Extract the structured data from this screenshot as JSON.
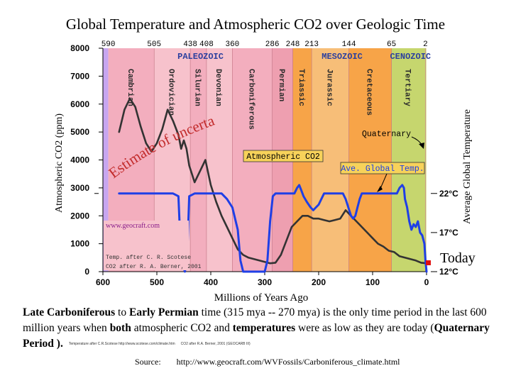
{
  "title": "Global Temperature and Atmospheric CO2 over Geologic Time",
  "chart_data": {
    "type": "line",
    "xlabel": "Millions of Years Ago",
    "ylabel_left": "Atmospheric CO2 (ppm)",
    "ylabel_right": "Average Global Temperature",
    "x_ticks": [
      600,
      500,
      400,
      300,
      200,
      100,
      0
    ],
    "y_ticks": [
      0,
      1000,
      2000,
      3000,
      4000,
      5000,
      6000,
      7000,
      8000
    ],
    "xlim": [
      600,
      0
    ],
    "ylim": [
      0,
      8000
    ],
    "temp_ticks": [
      {
        "label": "22°C",
        "ppm": 2800
      },
      {
        "label": "17°C",
        "ppm": 1400
      },
      {
        "label": "12°C",
        "ppm": 0
      }
    ],
    "top_boundaries": [
      "590",
      "505",
      "438",
      "408",
      "360",
      "286",
      "248",
      "213",
      "144",
      "65",
      "2"
    ],
    "eras": [
      {
        "label": "PALEOZOIC",
        "start": 590,
        "end": 248,
        "color": "#f4b6c0"
      },
      {
        "label": "MESOZOIC",
        "start": 248,
        "end": 65,
        "color": "#f6c985"
      },
      {
        "label": "CENOZOIC",
        "start": 65,
        "end": 0,
        "color": "#c9d97a"
      }
    ],
    "periods": [
      {
        "label": "Cambrian",
        "start": 590,
        "end": 505,
        "color": "#f3aebe"
      },
      {
        "label": "Ordovician",
        "start": 505,
        "end": 438,
        "color": "#f7c2cc"
      },
      {
        "label": "Silurian",
        "start": 438,
        "end": 408,
        "color": "#f3aebe"
      },
      {
        "label": "Devonian",
        "start": 408,
        "end": 360,
        "color": "#f7c2cc"
      },
      {
        "label": "Carboniferous",
        "start": 360,
        "end": 286,
        "color": "#f3aebe"
      },
      {
        "label": "Permian",
        "start": 286,
        "end": 248,
        "color": "#ee9fb0"
      },
      {
        "label": "Triassic",
        "start": 248,
        "end": 213,
        "color": "#f7a448"
      },
      {
        "label": "Jurassic",
        "start": 213,
        "end": 144,
        "color": "#f7be78"
      },
      {
        "label": "Cretaceous",
        "start": 144,
        "end": 65,
        "color": "#f7a448"
      },
      {
        "label": "Tertiary",
        "start": 65,
        "end": 2,
        "color": "#c6d66e"
      }
    ],
    "series": [
      {
        "name": "Atmospheric CO2",
        "color": "#333333",
        "points": [
          [
            570,
            5000
          ],
          [
            560,
            5800
          ],
          [
            550,
            6200
          ],
          [
            540,
            5900
          ],
          [
            530,
            5200
          ],
          [
            520,
            4600
          ],
          [
            510,
            4300
          ],
          [
            500,
            4600
          ],
          [
            490,
            5100
          ],
          [
            480,
            5800
          ],
          [
            470,
            5400
          ],
          [
            460,
            4900
          ],
          [
            455,
            4400
          ],
          [
            450,
            4700
          ],
          [
            445,
            4400
          ],
          [
            440,
            3800
          ],
          [
            430,
            3200
          ],
          [
            420,
            3600
          ],
          [
            410,
            4000
          ],
          [
            400,
            3100
          ],
          [
            390,
            2500
          ],
          [
            380,
            2000
          ],
          [
            370,
            1600
          ],
          [
            360,
            1200
          ],
          [
            350,
            800
          ],
          [
            340,
            600
          ],
          [
            330,
            500
          ],
          [
            310,
            400
          ],
          [
            300,
            350
          ],
          [
            290,
            300
          ],
          [
            280,
            320
          ],
          [
            270,
            600
          ],
          [
            260,
            1100
          ],
          [
            250,
            1600
          ],
          [
            240,
            1800
          ],
          [
            230,
            2000
          ],
          [
            220,
            2000
          ],
          [
            210,
            1900
          ],
          [
            200,
            1900
          ],
          [
            190,
            1850
          ],
          [
            180,
            1800
          ],
          [
            170,
            1850
          ],
          [
            160,
            1900
          ],
          [
            150,
            2200
          ],
          [
            140,
            2000
          ],
          [
            130,
            1800
          ],
          [
            120,
            1600
          ],
          [
            110,
            1400
          ],
          [
            100,
            1200
          ],
          [
            90,
            1000
          ],
          [
            80,
            900
          ],
          [
            70,
            750
          ],
          [
            60,
            700
          ],
          [
            50,
            550
          ],
          [
            40,
            500
          ],
          [
            30,
            450
          ],
          [
            20,
            400
          ],
          [
            10,
            320
          ],
          [
            0,
            300
          ]
        ]
      },
      {
        "name": "Ave. Global Temp.",
        "color": "#1f3fe6",
        "points": [
          [
            570,
            2800
          ],
          [
            550,
            2800
          ],
          [
            530,
            2800
          ],
          [
            510,
            2800
          ],
          [
            490,
            2800
          ],
          [
            470,
            2800
          ],
          [
            460,
            2700
          ],
          [
            455,
            400
          ],
          [
            448,
            0
          ],
          [
            444,
            400
          ],
          [
            440,
            2700
          ],
          [
            430,
            2800
          ],
          [
            400,
            2800
          ],
          [
            390,
            2800
          ],
          [
            380,
            2800
          ],
          [
            370,
            2600
          ],
          [
            360,
            2300
          ],
          [
            350,
            1500
          ],
          [
            345,
            400
          ],
          [
            340,
            0
          ],
          [
            300,
            0
          ],
          [
            295,
            400
          ],
          [
            290,
            1800
          ],
          [
            285,
            2700
          ],
          [
            280,
            2800
          ],
          [
            260,
            2800
          ],
          [
            245,
            2800
          ],
          [
            240,
            3000
          ],
          [
            236,
            3100
          ],
          [
            232,
            2900
          ],
          [
            228,
            2700
          ],
          [
            222,
            2500
          ],
          [
            215,
            2300
          ],
          [
            210,
            2200
          ],
          [
            205,
            2300
          ],
          [
            200,
            2400
          ],
          [
            195,
            2600
          ],
          [
            190,
            2800
          ],
          [
            175,
            2800
          ],
          [
            160,
            2800
          ],
          [
            155,
            2800
          ],
          [
            150,
            2600
          ],
          [
            145,
            2300
          ],
          [
            140,
            2000
          ],
          [
            136,
            1900
          ],
          [
            132,
            2000
          ],
          [
            128,
            2300
          ],
          [
            124,
            2600
          ],
          [
            120,
            2800
          ],
          [
            100,
            2800
          ],
          [
            80,
            2800
          ],
          [
            60,
            2800
          ],
          [
            55,
            2800
          ],
          [
            50,
            3000
          ],
          [
            45,
            3100
          ],
          [
            42,
            3000
          ],
          [
            40,
            2600
          ],
          [
            36,
            2300
          ],
          [
            32,
            1800
          ],
          [
            28,
            1500
          ],
          [
            24,
            1700
          ],
          [
            20,
            1600
          ],
          [
            16,
            1800
          ],
          [
            12,
            1400
          ],
          [
            8,
            1300
          ],
          [
            4,
            1000
          ],
          [
            2,
            400
          ],
          [
            0,
            0
          ]
        ]
      }
    ],
    "annotations": [
      {
        "text": "Estimate of uncertainty"
      },
      {
        "text": "Atmospheric CO2"
      },
      {
        "text": "Ave. Global Temp."
      },
      {
        "text": "Quaternary"
      },
      {
        "text": "Today"
      }
    ],
    "credits": [
      "www.geocraft.com",
      "Temp. after C. R. Scotese",
      "CO2 after R. A. Berner, 2001"
    ]
  },
  "caption": {
    "b1": "Late Carboniferous",
    "t1": " to ",
    "b2": "Early Permian",
    "t2": " time (315 mya -- 270 mya) is the only time period in the last 600 million years when ",
    "b3": "both",
    "t3": " atmospheric CO2 and ",
    "b4": "temperatures",
    "t4": " were as low as they are today (",
    "b5": "Quaternary Period",
    "t5": " ).",
    "fine1": "Temperature after C.R.Scotese http://www.scotese.com/climate.htm",
    "fine2": "CO2 after R.A. Berner, 2001 (GEOCARB III)"
  },
  "source": {
    "label": "Source:",
    "url": "http://www.geocraft.com/WVFossils/Carboniferous_climate.html"
  }
}
